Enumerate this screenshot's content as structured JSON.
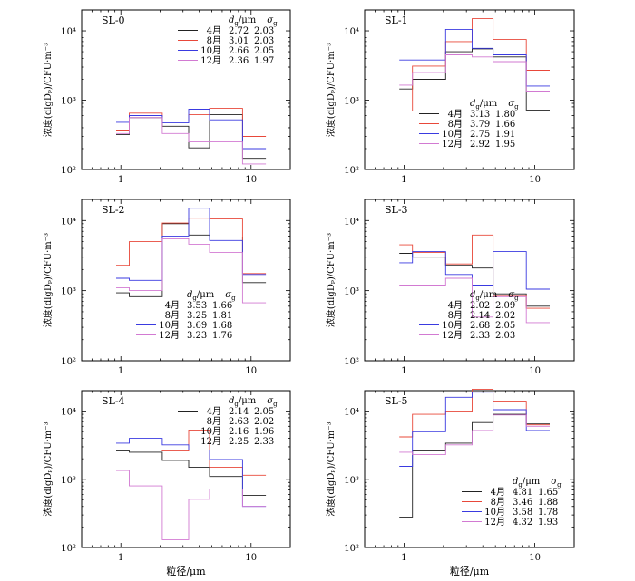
{
  "colors": {
    "4月": "#222222",
    "8月": "#e8483a",
    "10月": "#3a3ae0",
    "12月": "#d27ad2"
  },
  "axes": {
    "ylabel": "浓度(dlgDₚ)/CFU·m⁻³",
    "xlabel": "粒径/μm",
    "y_ticks": [
      {
        "v": 100,
        "label": "10²"
      },
      {
        "v": 1000,
        "label": "10³"
      },
      {
        "v": 10000,
        "label": "10⁴"
      }
    ],
    "x_ticks": [
      {
        "v": 1,
        "label": "1"
      },
      {
        "v": 10,
        "label": "10"
      }
    ],
    "legend_header": "dg/μm   σg"
  },
  "chart_data": [
    {
      "type": "line",
      "panel_label": "SL-0",
      "xscale": "log",
      "yscale": "log",
      "xlim": [
        0.5,
        20
      ],
      "ylim": [
        100,
        20000
      ],
      "bin_edges": [
        0.92,
        1.16,
        2.08,
        3.32,
        4.8,
        8.6,
        13
      ],
      "series": [
        {
          "name": "4月",
          "dg": "2.72",
          "sg": "2.03",
          "values": [
            320,
            560,
            420,
            205,
            620,
            145
          ]
        },
        {
          "name": "8月",
          "dg": "3.01",
          "sg": "2.03",
          "values": [
            370,
            650,
            500,
            620,
            760,
            300
          ]
        },
        {
          "name": "10月",
          "dg": "2.66",
          "sg": "2.05",
          "values": [
            480,
            600,
            470,
            740,
            520,
            200
          ]
        },
        {
          "name": "12月",
          "dg": "2.36",
          "sg": "1.97",
          "values": [
            330,
            560,
            330,
            250,
            250,
            120
          ]
        }
      ],
      "legend_pos": "top-right"
    },
    {
      "type": "line",
      "panel_label": "SL-1",
      "xscale": "log",
      "yscale": "log",
      "xlim": [
        0.5,
        20
      ],
      "ylim": [
        100,
        20000
      ],
      "bin_edges": [
        0.92,
        1.16,
        2.08,
        3.32,
        4.8,
        8.6,
        13
      ],
      "series": [
        {
          "name": "4月",
          "dg": "3.13",
          "sg": "1.80",
          "values": [
            1450,
            2000,
            5000,
            5500,
            4200,
            720
          ]
        },
        {
          "name": "8月",
          "dg": "3.79",
          "sg": "1.66",
          "values": [
            700,
            3100,
            7000,
            15000,
            7500,
            2700
          ]
        },
        {
          "name": "10月",
          "dg": "2.75",
          "sg": "1.91",
          "values": [
            3800,
            3800,
            10500,
            5600,
            4500,
            1600
          ]
        },
        {
          "name": "12月",
          "dg": "2.92",
          "sg": "1.95",
          "values": [
            1650,
            2500,
            4500,
            4200,
            3600,
            1350
          ]
        }
      ],
      "legend_pos": "bottom-left"
    },
    {
      "type": "line",
      "panel_label": "SL-2",
      "xscale": "log",
      "yscale": "log",
      "xlim": [
        0.5,
        20
      ],
      "ylim": [
        100,
        20000
      ],
      "bin_edges": [
        0.92,
        1.16,
        2.08,
        3.32,
        4.8,
        8.6,
        13
      ],
      "series": [
        {
          "name": "4月",
          "dg": "3.53",
          "sg": "1.66",
          "values": [
            930,
            820,
            9000,
            6200,
            5800,
            1300
          ]
        },
        {
          "name": "8月",
          "dg": "3.25",
          "sg": "1.81",
          "values": [
            2300,
            5000,
            9200,
            10800,
            10500,
            1750
          ]
        },
        {
          "name": "10月",
          "dg": "3.69",
          "sg": "1.68",
          "values": [
            1500,
            1400,
            6000,
            15000,
            5200,
            1700
          ]
        },
        {
          "name": "12月",
          "dg": "3.23",
          "sg": "1.76",
          "values": [
            1100,
            1000,
            5500,
            4600,
            3500,
            670
          ]
        }
      ],
      "legend_pos": "bottom-left"
    },
    {
      "type": "line",
      "panel_label": "SL-3",
      "xscale": "log",
      "yscale": "log",
      "xlim": [
        0.5,
        20
      ],
      "ylim": [
        100,
        20000
      ],
      "bin_edges": [
        0.92,
        1.16,
        2.08,
        3.32,
        4.8,
        8.6,
        13
      ],
      "series": [
        {
          "name": "4月",
          "dg": "2.02",
          "sg": "2.09",
          "values": [
            3400,
            3000,
            2300,
            2100,
            900,
            600
          ]
        },
        {
          "name": "8月",
          "dg": "2.14",
          "sg": "2.02",
          "values": [
            4500,
            3500,
            2400,
            6200,
            850,
            560
          ]
        },
        {
          "name": "10月",
          "dg": "2.68",
          "sg": "2.05",
          "values": [
            2500,
            3600,
            1700,
            1200,
            3600,
            1050
          ]
        },
        {
          "name": "12月",
          "dg": "2.33",
          "sg": "2.03",
          "values": [
            1200,
            1200,
            1500,
            420,
            820,
            350
          ]
        }
      ],
      "legend_pos": "bottom-left"
    },
    {
      "type": "line",
      "panel_label": "SL-4",
      "xscale": "log",
      "yscale": "log",
      "xlim": [
        0.5,
        20
      ],
      "ylim": [
        100,
        20000
      ],
      "bin_edges": [
        0.92,
        1.16,
        2.08,
        3.32,
        4.8,
        8.6,
        13
      ],
      "series": [
        {
          "name": "4月",
          "dg": "2.14",
          "sg": "2.05",
          "values": [
            2600,
            2500,
            1900,
            1500,
            1100,
            580
          ]
        },
        {
          "name": "8月",
          "dg": "2.63",
          "sg": "2.02",
          "values": [
            2700,
            2700,
            2600,
            5300,
            1500,
            1150
          ]
        },
        {
          "name": "10月",
          "dg": "2.16",
          "sg": "1.96",
          "values": [
            3400,
            4000,
            3200,
            2700,
            1950,
            400
          ]
        },
        {
          "name": "12月",
          "dg": "2.25",
          "sg": "2.33",
          "values": [
            1350,
            800,
            130,
            510,
            720,
            400
          ]
        }
      ],
      "legend_pos": "top-right"
    },
    {
      "type": "line",
      "panel_label": "SL-5",
      "xscale": "log",
      "yscale": "log",
      "xlim": [
        0.5,
        20
      ],
      "ylim": [
        100,
        20000
      ],
      "bin_edges": [
        0.92,
        1.16,
        2.08,
        3.32,
        4.8,
        8.6,
        13
      ],
      "series": [
        {
          "name": "4月",
          "dg": "4.81",
          "sg": "1.65",
          "values": [
            280,
            2600,
            3400,
            6800,
            9000,
            6500
          ]
        },
        {
          "name": "8月",
          "dg": "3.46",
          "sg": "1.88",
          "values": [
            4200,
            9000,
            10000,
            21000,
            14000,
            6300
          ]
        },
        {
          "name": "10月",
          "dg": "3.58",
          "sg": "1.78",
          "values": [
            1550,
            5000,
            16000,
            19000,
            10500,
            5200
          ]
        },
        {
          "name": "12月",
          "dg": "4.32",
          "sg": "1.93",
          "values": [
            2500,
            2300,
            3200,
            5200,
            8800,
            6000
          ]
        }
      ],
      "legend_pos": "bottom-right"
    }
  ]
}
